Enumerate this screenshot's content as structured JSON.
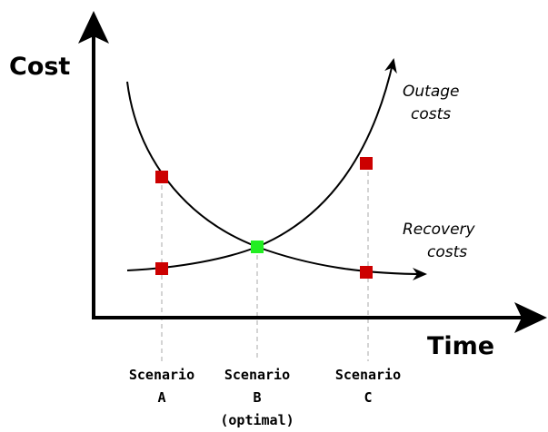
{
  "axes": {
    "y_label": "Cost",
    "x_label": "Time"
  },
  "curves": [
    {
      "label_lines": [
        "Outage",
        "costs"
      ]
    },
    {
      "label_lines": [
        "Recovery",
        "costs"
      ]
    }
  ],
  "scenarios": [
    {
      "lines": [
        "Scenario",
        "A"
      ]
    },
    {
      "lines": [
        "Scenario",
        "B",
        "(optimal)"
      ]
    },
    {
      "lines": [
        "Scenario",
        "C"
      ]
    }
  ]
}
